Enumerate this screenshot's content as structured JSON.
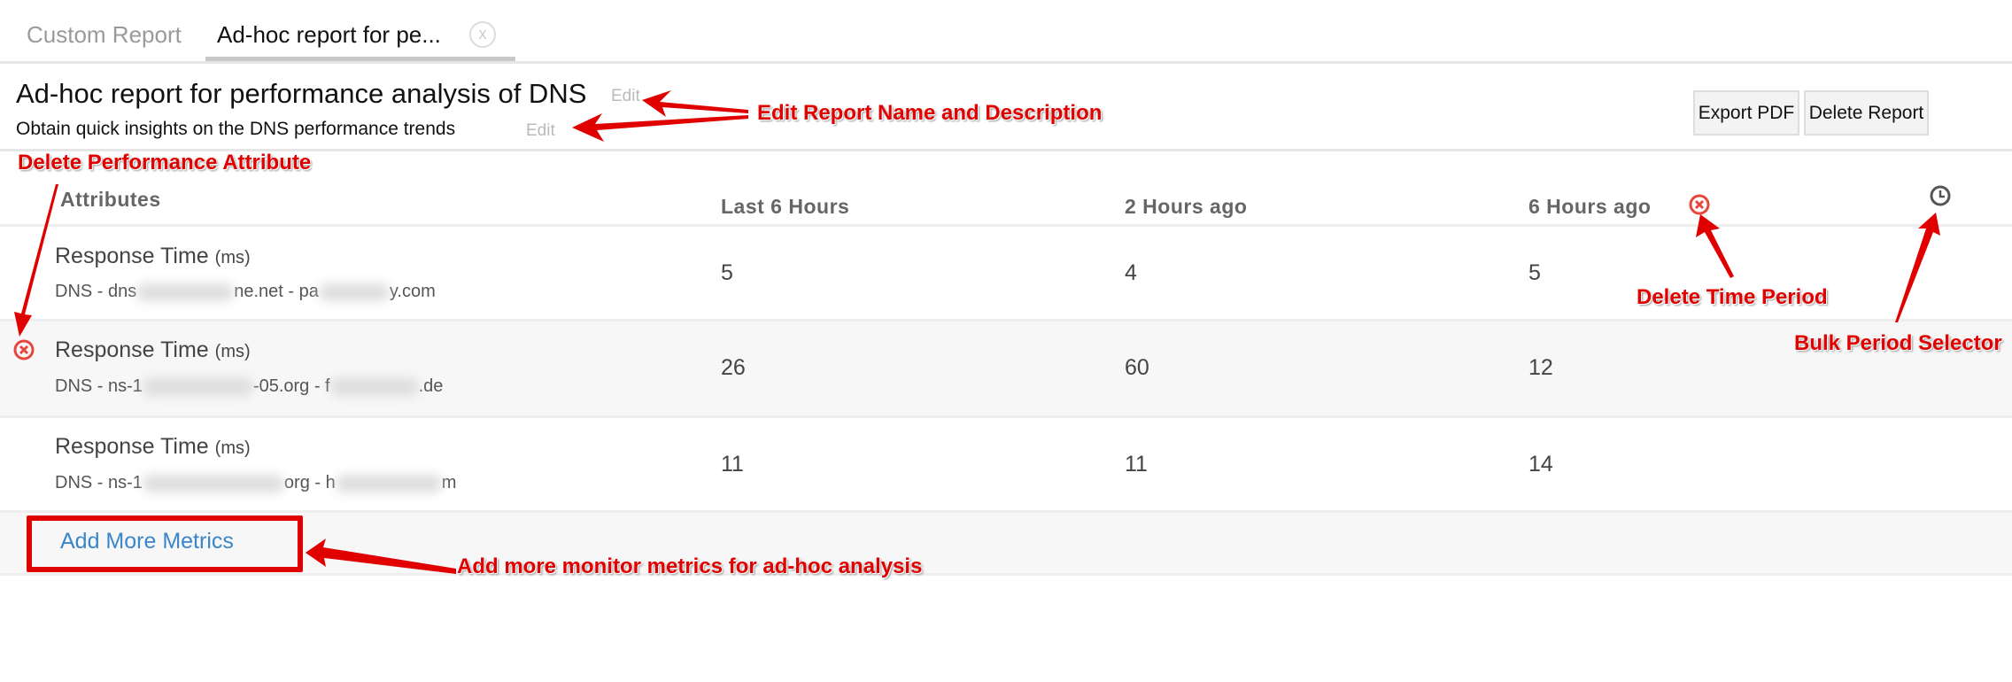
{
  "tabs": [
    {
      "label": "Custom Report"
    },
    {
      "label": "Ad-hoc report for pe...",
      "close": "x"
    }
  ],
  "report": {
    "title": "Ad-hoc report for performance analysis of DNS",
    "title_edit": "Edit",
    "description": "Obtain quick insights on the DNS performance trends",
    "description_edit": "Edit"
  },
  "toolbar": {
    "export_pdf": "Export PDF",
    "delete_report": "Delete Report"
  },
  "table": {
    "headers": [
      "Attributes",
      "Last 6 Hours",
      "2 Hours ago",
      "6 Hours ago"
    ],
    "rows": [
      {
        "metric": "Response Time",
        "unit": "(ms)",
        "monitor_parts": [
          "DNS - dns",
          "ne.net - pa",
          "y.com"
        ],
        "values": [
          "5",
          "4",
          "5"
        ]
      },
      {
        "metric": "Response Time",
        "unit": "(ms)",
        "monitor_parts": [
          "DNS - ns-1",
          "-05.org - f",
          ".de"
        ],
        "values": [
          "26",
          "60",
          "12"
        ]
      },
      {
        "metric": "Response Time",
        "unit": "(ms)",
        "monitor_parts": [
          "DNS - ns-1",
          "org - h",
          "m"
        ],
        "values": [
          "11",
          "11",
          "14"
        ]
      }
    ],
    "add_more": "Add More Metrics"
  },
  "annotations": {
    "edit": "Edit Report Name and Description",
    "delete_attr": "Delete Performance Attribute",
    "delete_period": "Delete Time Period",
    "bulk": "Bulk Period Selector",
    "add_more": "Add more monitor metrics for ad-hoc analysis"
  },
  "colors": {
    "annotation": "#e00000",
    "delete_icon": "#e8453c",
    "link": "#3a86c8"
  }
}
